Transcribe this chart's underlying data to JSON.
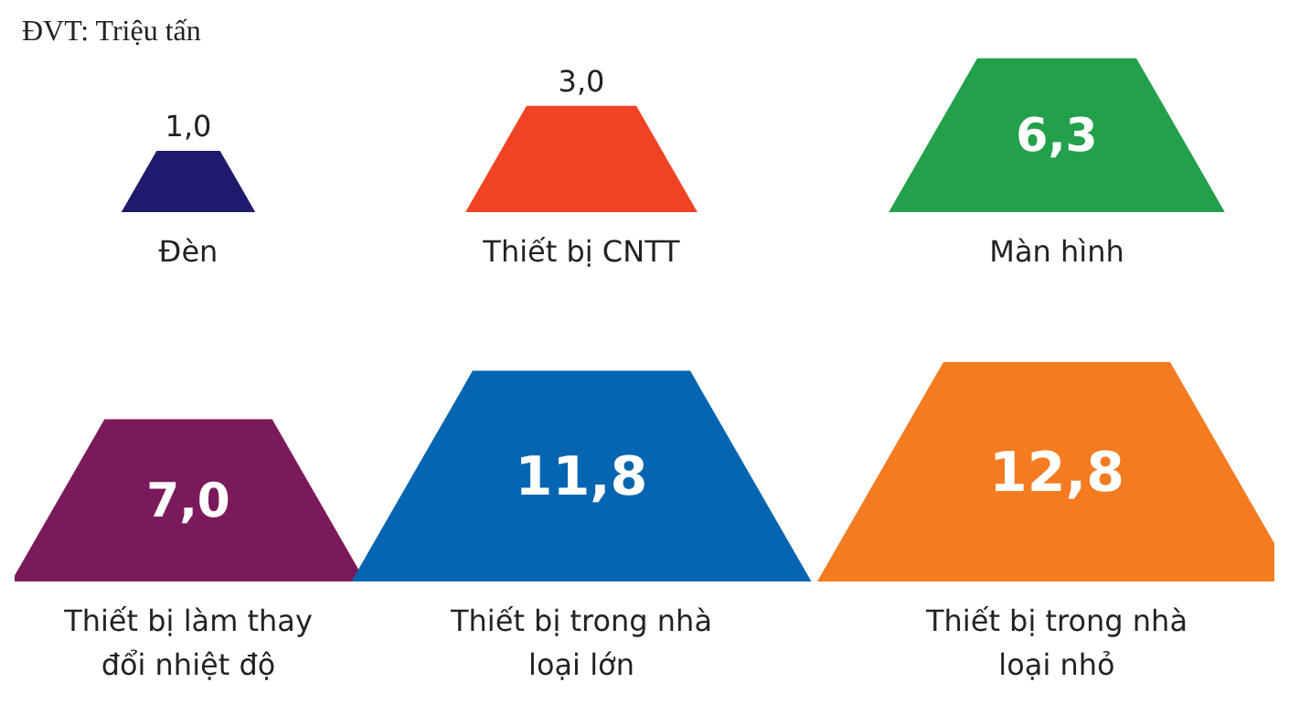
{
  "chart_data": {
    "type": "other",
    "title": "ĐVT: Triệu tấn",
    "categories": [
      "Đèn",
      "Thiết bị CNTT",
      "Màn hình",
      "Thiết bị làm thay đổi nhiệt độ",
      "Thiết bị trong nhà loại lớn",
      "Thiết bị trong nhà loại nhỏ"
    ],
    "values": [
      1.0,
      3.0,
      6.3,
      7.0,
      11.8,
      12.8
    ],
    "colors": [
      "#1f1a6b",
      "#f04323",
      "#23a04a",
      "#7b1a5a",
      "#0565b0",
      "#f47b20"
    ],
    "value_labels": [
      "1,0",
      "3,0",
      "6,3",
      "7,0",
      "11,8",
      "12,8"
    ]
  }
}
